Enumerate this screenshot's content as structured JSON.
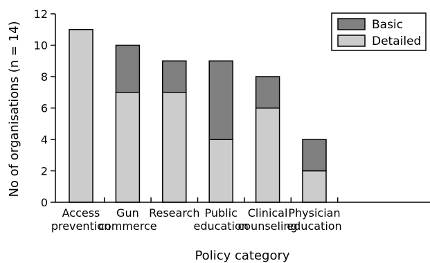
{
  "chart_data": {
    "type": "bar",
    "stacked": true,
    "categories": [
      [
        "Access",
        "prevention"
      ],
      [
        "Gun",
        "commerce"
      ],
      [
        "Research"
      ],
      [
        "Public",
        "education"
      ],
      [
        "Clinical",
        "counseling"
      ],
      [
        "Physician",
        "education"
      ]
    ],
    "series": [
      {
        "name": "Detailed",
        "values": [
          11,
          7,
          7,
          4,
          6,
          2
        ],
        "color": "#cccccc"
      },
      {
        "name": "Basic",
        "values": [
          0,
          3,
          2,
          5,
          2,
          2
        ],
        "color": "#808080"
      }
    ],
    "legend_order": [
      "Basic",
      "Detailed"
    ],
    "xlabel": "Policy category",
    "ylabel": "No of organisations (n = 14)",
    "ylim": [
      0,
      12
    ],
    "yticks": [
      0,
      2,
      4,
      6,
      8,
      10,
      12
    ],
    "grid": false,
    "legend_position": "top-right"
  }
}
